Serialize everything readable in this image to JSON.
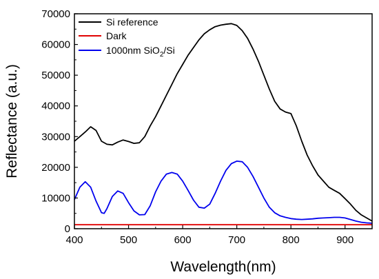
{
  "chart_data": {
    "type": "line",
    "xlabel": "Wavelength(nm)",
    "ylabel": "Reflectance (a.u.)",
    "xlim": [
      400,
      950
    ],
    "ylim": [
      0,
      70000
    ],
    "xticks": [
      400,
      500,
      600,
      700,
      800,
      900
    ],
    "yticks": [
      0,
      10000,
      20000,
      30000,
      40000,
      50000,
      60000,
      70000
    ],
    "grid": false,
    "legend_position": "top-left",
    "series": [
      {
        "name": "Si reference",
        "color": "#000000",
        "x": [
          400,
          410,
          420,
          430,
          440,
          450,
          460,
          470,
          480,
          490,
          500,
          510,
          520,
          530,
          540,
          550,
          560,
          570,
          580,
          590,
          600,
          610,
          620,
          630,
          640,
          650,
          660,
          670,
          680,
          690,
          700,
          710,
          720,
          730,
          740,
          750,
          760,
          770,
          780,
          790,
          800,
          810,
          820,
          830,
          840,
          850,
          860,
          870,
          880,
          890,
          900,
          910,
          920,
          930,
          940,
          950
        ],
        "values": [
          28500,
          30000,
          31500,
          33200,
          32000,
          28500,
          27500,
          27300,
          28200,
          28900,
          28400,
          27800,
          28000,
          30000,
          33500,
          36500,
          40000,
          43500,
          47000,
          50500,
          53500,
          56500,
          59000,
          61500,
          63500,
          64800,
          65800,
          66300,
          66600,
          66800,
          66200,
          64500,
          62000,
          58500,
          54500,
          50000,
          45500,
          41500,
          39000,
          38000,
          37500,
          33500,
          28500,
          24000,
          20500,
          17500,
          15500,
          13500,
          12500,
          11500,
          9800,
          8000,
          6000,
          4500,
          3500,
          2500
        ]
      },
      {
        "name": "Dark",
        "color": "#e00000",
        "x": [
          400,
          950
        ],
        "values": [
          1300,
          1300
        ]
      },
      {
        "name": "1000nm SiO2/Si",
        "color": "#0000ee",
        "x": [
          400,
          410,
          420,
          430,
          440,
          450,
          455,
          460,
          470,
          480,
          490,
          500,
          510,
          520,
          530,
          540,
          550,
          560,
          570,
          580,
          590,
          600,
          610,
          620,
          630,
          640,
          650,
          660,
          670,
          680,
          690,
          700,
          710,
          720,
          730,
          740,
          750,
          760,
          770,
          780,
          790,
          800,
          810,
          820,
          830,
          840,
          850,
          860,
          870,
          880,
          890,
          900,
          910,
          920,
          930,
          940,
          950
        ],
        "values": [
          9500,
          13500,
          15300,
          13500,
          9000,
          5200,
          5000,
          6500,
          10500,
          12300,
          11500,
          8500,
          5800,
          4500,
          4600,
          7500,
          12000,
          15500,
          17800,
          18300,
          17800,
          15500,
          12500,
          9300,
          7000,
          6700,
          8000,
          11500,
          15500,
          19000,
          21200,
          22000,
          21800,
          20000,
          17000,
          13500,
          10000,
          7000,
          5200,
          4200,
          3700,
          3300,
          3100,
          3000,
          3100,
          3200,
          3400,
          3500,
          3600,
          3700,
          3700,
          3500,
          3000,
          2500,
          2100,
          1900,
          1800
        ]
      }
    ]
  },
  "legend": [
    {
      "label": "Si reference",
      "color": "#000000"
    },
    {
      "label": "Dark",
      "color": "#e00000"
    },
    {
      "label_main": "1000nm SiO",
      "label_sub": "2",
      "label_end": "/Si",
      "color": "#0000ee"
    }
  ]
}
